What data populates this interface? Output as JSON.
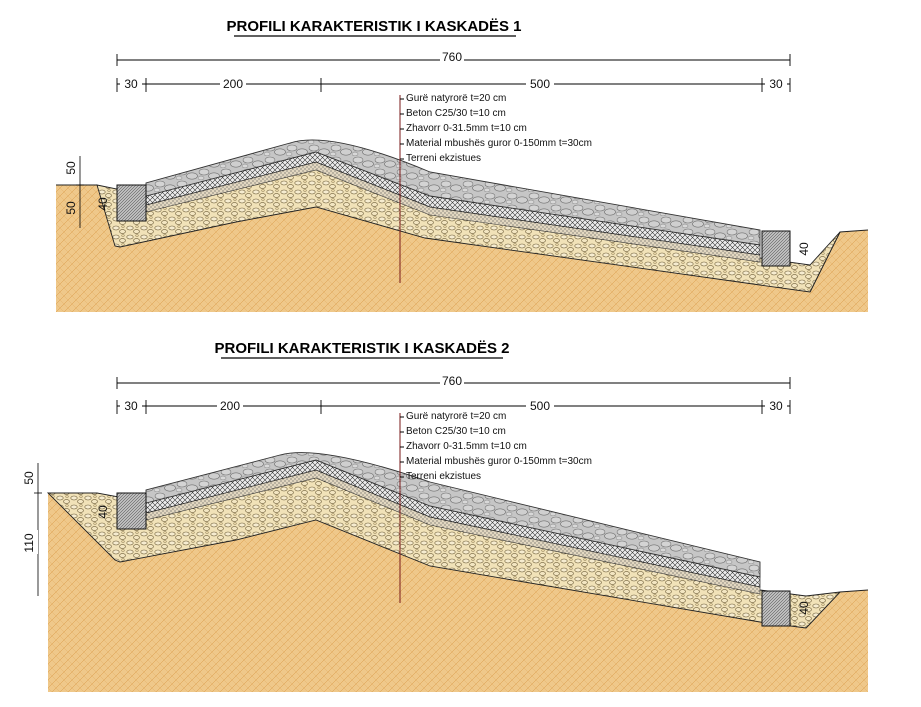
{
  "palette": {
    "soil": "#efc88a",
    "soil_line": "#d99a48",
    "stone": "#c3c3c3",
    "stone_line": "#777777",
    "rubble": "#f3e6c2",
    "rubble_line": "#8a7a55",
    "concrete": "#e8e8e8",
    "gravel": "#e8dcc0",
    "leader": "#7a1a1a"
  },
  "profile1": {
    "title": "PROFILI KARAKTERISTIK I KASKADËS 1",
    "total_dim": "760",
    "dims": [
      "30",
      "200",
      "500",
      "30"
    ],
    "left_dims": [
      "50",
      "50"
    ],
    "block_left": "40",
    "block_right": "40",
    "legend": [
      "Gurë natyrorë t=20 cm",
      "Beton C25/30 t=10 cm",
      "Zhavorr  0-31.5mm t=10 cm",
      "Material mbushës guror 0-150mm t=30cm",
      "Terreni ekzistues"
    ]
  },
  "profile2": {
    "title": "PROFILI KARAKTERISTIK I KASKADËS 2",
    "total_dim": "760",
    "dims": [
      "30",
      "200",
      "500",
      "30"
    ],
    "left_dims": [
      "50",
      "110"
    ],
    "block_left": "40",
    "block_right": "40",
    "legend": [
      "Gurë natyrorë t=20 cm",
      "Beton C25/30 t=10 cm",
      "Zhavorr  0-31.5mm t=10 cm",
      "Material mbushës guror 0-150mm t=30cm",
      "Terreni ekzistues"
    ]
  }
}
